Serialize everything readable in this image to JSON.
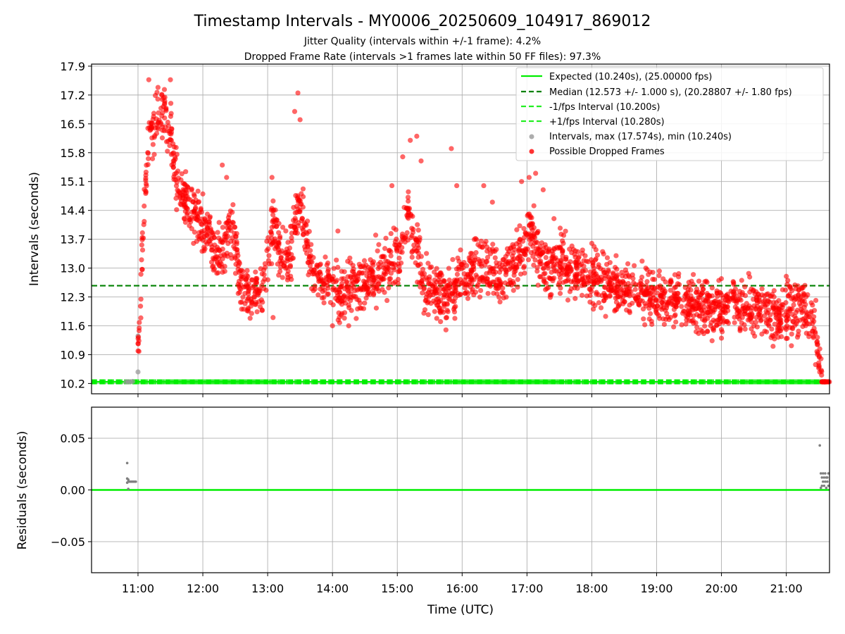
{
  "chart_data": [
    {
      "type": "scatter",
      "title": "Timestamp Intervals - MY0006_20250609_104917_869012",
      "subtitle_1": "Jitter Quality (intervals within +/-1 frame): 4.2%",
      "subtitle_2": "Dropped Frame Rate (intervals >1 frames late within 50 FF files): 97.3%",
      "ylabel": "Intervals (seconds)",
      "x_axis_unit": "time (UTC, HH:MM)",
      "xlim": [
        "10:17",
        "21:40"
      ],
      "ylim": [
        9.95,
        17.95
      ],
      "yticks": [
        "10.2",
        "10.9",
        "11.6",
        "12.3",
        "13.0",
        "13.7",
        "14.4",
        "15.1",
        "15.8",
        "16.5",
        "17.2",
        "17.9"
      ],
      "grid": true,
      "legend_position": "top-right",
      "lines": {
        "expected": {
          "label": "Expected (10.240s), (25.00000 fps)",
          "y": 10.24,
          "color": "#00ee00",
          "style": "solid"
        },
        "median": {
          "label": "Median (12.573 +/- 1.000 s), (20.28807 +/- 1.80 fps)",
          "y": 12.573,
          "color": "#008000",
          "style": "dashed"
        },
        "minus_fps": {
          "label": "-1/fps Interval (10.200s)",
          "y": 10.2,
          "color": "#22ee22",
          "style": "dashed"
        },
        "plus_fps": {
          "label": "+1/fps Interval (10.280s)",
          "y": 10.28,
          "color": "#22ee22",
          "style": "dashed"
        }
      },
      "series": [
        {
          "name": "Intervals, max (17.574s), min (10.240s)",
          "color": "#999999",
          "points": [
            [
              "10:49",
              10.24
            ],
            [
              "10:51",
              10.24
            ],
            [
              "10:53",
              10.24
            ],
            [
              "10:55",
              10.25
            ],
            [
              "11:00",
              10.48
            ],
            [
              "11:00",
              11.35
            ]
          ]
        },
        {
          "name": "Possible Dropped Frames",
          "color": "#ff0000",
          "trend": [
            [
              "11:00",
              11.2
            ],
            [
              "11:02",
              11.8
            ],
            [
              "11:04",
              13.5
            ],
            [
              "11:06",
              14.8
            ],
            [
              "11:10",
              16.0
            ],
            [
              "11:14",
              16.4
            ],
            [
              "11:18",
              16.6
            ],
            [
              "11:22",
              16.8
            ],
            [
              "11:26",
              16.6
            ],
            [
              "11:30",
              16.3
            ],
            [
              "11:33",
              15.6
            ],
            [
              "11:36",
              15.0
            ],
            [
              "11:40",
              14.8
            ],
            [
              "11:50",
              14.5
            ],
            [
              "12:00",
              14.0
            ],
            [
              "12:10",
              13.6
            ],
            [
              "12:20",
              13.4
            ],
            [
              "12:25",
              14.0
            ],
            [
              "12:30",
              13.5
            ],
            [
              "12:35",
              12.6
            ],
            [
              "12:45",
              12.4
            ],
            [
              "12:55",
              12.5
            ],
            [
              "13:00",
              13.2
            ],
            [
              "13:05",
              14.2
            ],
            [
              "13:10",
              13.5
            ],
            [
              "13:15",
              13.2
            ],
            [
              "13:20",
              13.0
            ],
            [
              "13:25",
              14.0
            ],
            [
              "13:30",
              14.5
            ],
            [
              "13:35",
              14.0
            ],
            [
              "13:40",
              13.0
            ],
            [
              "13:50",
              12.6
            ],
            [
              "14:00",
              12.6
            ],
            [
              "14:10",
              12.3
            ],
            [
              "14:20",
              12.5
            ],
            [
              "14:30",
              12.5
            ],
            [
              "14:40",
              12.8
            ],
            [
              "14:50",
              13.0
            ],
            [
              "15:00",
              13.2
            ],
            [
              "15:05",
              13.6
            ],
            [
              "15:10",
              14.4
            ],
            [
              "15:15",
              13.8
            ],
            [
              "15:20",
              13.3
            ],
            [
              "15:25",
              12.6
            ],
            [
              "15:35",
              12.4
            ],
            [
              "15:45",
              12.2
            ],
            [
              "15:50",
              12.4
            ],
            [
              "15:55",
              12.6
            ],
            [
              "16:05",
              12.9
            ],
            [
              "16:15",
              13.1
            ],
            [
              "16:25",
              13.0
            ],
            [
              "16:35",
              12.6
            ],
            [
              "16:45",
              13.0
            ],
            [
              "16:55",
              13.3
            ],
            [
              "17:00",
              13.8
            ],
            [
              "17:05",
              14.0
            ],
            [
              "17:10",
              13.3
            ],
            [
              "17:20",
              13.0
            ],
            [
              "17:30",
              13.1
            ],
            [
              "17:40",
              13.0
            ],
            [
              "17:50",
              12.9
            ],
            [
              "18:00",
              12.8
            ],
            [
              "18:15",
              12.6
            ],
            [
              "18:30",
              12.5
            ],
            [
              "18:45",
              12.4
            ],
            [
              "19:00",
              12.3
            ],
            [
              "19:15",
              12.2
            ],
            [
              "19:30",
              12.1
            ],
            [
              "19:45",
              12.0
            ],
            [
              "20:00",
              12.1
            ],
            [
              "20:15",
              12.1
            ],
            [
              "20:30",
              12.0
            ],
            [
              "20:45",
              11.9
            ],
            [
              "21:00",
              11.9
            ],
            [
              "21:10",
              12.1
            ],
            [
              "21:20",
              12.0
            ],
            [
              "21:25",
              11.8
            ],
            [
              "21:28",
              11.4
            ],
            [
              "21:30",
              10.9
            ],
            [
              "21:32",
              10.5
            ],
            [
              "21:34",
              10.24
            ],
            [
              "21:40",
              10.24
            ]
          ],
          "spikes": [
            [
              "11:10",
              17.57
            ],
            [
              "11:30",
              17.57
            ],
            [
              "11:22",
              17.2
            ],
            [
              "12:00",
              14.8
            ],
            [
              "12:18",
              15.5
            ],
            [
              "12:22",
              15.2
            ],
            [
              "13:04",
              15.2
            ],
            [
              "13:25",
              16.8
            ],
            [
              "13:28",
              17.25
            ],
            [
              "13:30",
              16.6
            ],
            [
              "14:05",
              13.9
            ],
            [
              "14:40",
              13.8
            ],
            [
              "14:55",
              15.0
            ],
            [
              "15:05",
              15.7
            ],
            [
              "15:12",
              16.1
            ],
            [
              "15:18",
              16.2
            ],
            [
              "15:22",
              15.6
            ],
            [
              "15:50",
              15.9
            ],
            [
              "15:55",
              15.0
            ],
            [
              "16:20",
              15.0
            ],
            [
              "16:28",
              14.6
            ],
            [
              "16:55",
              15.1
            ],
            [
              "17:02",
              15.2
            ],
            [
              "17:08",
              15.3
            ],
            [
              "17:15",
              14.9
            ],
            [
              "17:25",
              14.2
            ],
            [
              "18:00",
              13.6
            ],
            [
              "18:10",
              13.4
            ],
            [
              "18:50",
              13.0
            ],
            [
              "19:00",
              12.0
            ],
            [
              "19:30",
              11.9
            ],
            [
              "19:50",
              11.6
            ],
            [
              "20:00",
              11.3
            ],
            [
              "20:30",
              11.6
            ],
            [
              "21:00",
              12.8
            ],
            [
              "21:05",
              11.4
            ],
            [
              "15:45",
              11.5
            ],
            [
              "15:40",
              11.7
            ],
            [
              "14:00",
              11.6
            ],
            [
              "14:15",
              11.6
            ],
            [
              "13:05",
              11.8
            ]
          ],
          "count_approx": 2700
        }
      ]
    },
    {
      "type": "scatter",
      "ylabel": "Residuals (seconds)",
      "xlabel": "Time (UTC)",
      "xticks": [
        "11:00",
        "12:00",
        "13:00",
        "14:00",
        "15:00",
        "16:00",
        "17:00",
        "18:00",
        "19:00",
        "20:00",
        "21:00"
      ],
      "yticks": [
        "0.05",
        "0.00",
        "−0.05"
      ],
      "ylim": [
        -0.08,
        0.08
      ],
      "grid": true,
      "zero_line_color": "#00ee00",
      "series": [
        {
          "name": "residuals",
          "color": "#808080",
          "points": [
            [
              "10:50",
              0.026
            ],
            [
              "10:50",
              0.011
            ],
            [
              "10:50",
              0.007
            ],
            [
              "10:51",
              0.01
            ],
            [
              "10:51",
              0.008
            ],
            [
              "10:52",
              0.008
            ],
            [
              "10:53",
              0.008
            ],
            [
              "10:54",
              0.008
            ],
            [
              "10:55",
              0.008
            ],
            [
              "10:56",
              0.008
            ],
            [
              "10:57",
              0.008
            ],
            [
              "10:58",
              0.008
            ],
            [
              "10:51",
              0.001
            ],
            [
              "21:31",
              0.043
            ],
            [
              "21:32",
              0.016
            ],
            [
              "21:33",
              0.012
            ],
            [
              "21:34",
              0.008
            ],
            [
              "21:35",
              0.004
            ],
            [
              "21:36",
              0.016
            ],
            [
              "21:37",
              0.012
            ],
            [
              "21:38",
              0.008
            ],
            [
              "21:39",
              0.004
            ],
            [
              "21:33",
              0.004
            ],
            [
              "21:35",
              0.012
            ],
            [
              "21:37",
              0.002
            ],
            [
              "21:39",
              0.016
            ],
            [
              "21:32",
              0.002
            ],
            [
              "21:36",
              0.008
            ],
            [
              "21:38",
              0.012
            ],
            [
              "21:34",
              0.016
            ]
          ]
        }
      ]
    }
  ]
}
